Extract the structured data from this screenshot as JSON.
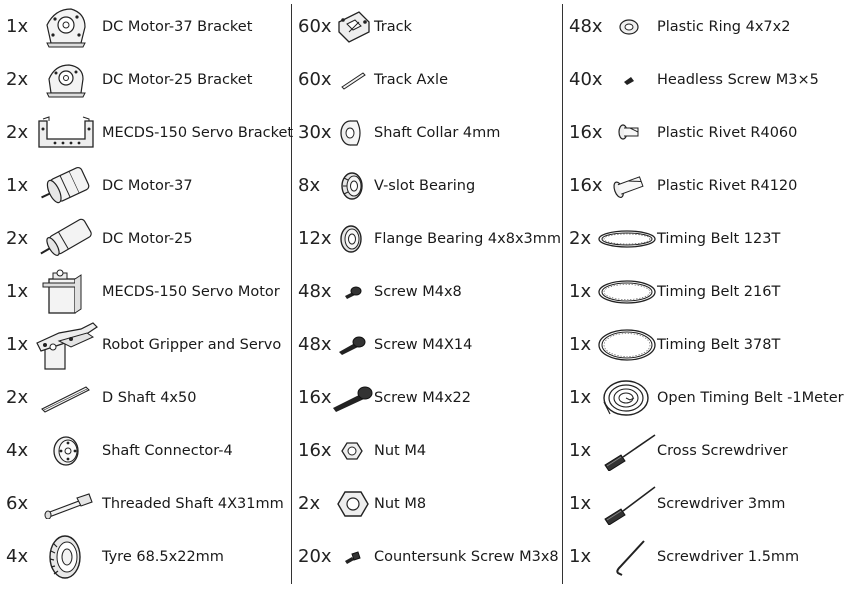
{
  "columns": [
    {
      "items": [
        {
          "qty": "1x",
          "label": "DC Motor-37 Bracket",
          "icon": "motor-bracket-icon"
        },
        {
          "qty": "2x",
          "label": "DC Motor-25 Bracket",
          "icon": "motor-bracket-icon"
        },
        {
          "qty": "2x",
          "label": "MECDS-150 Servo Bracket",
          "icon": "servo-bracket-icon"
        },
        {
          "qty": "1x",
          "label": "DC Motor-37",
          "icon": "dc-motor-icon"
        },
        {
          "qty": "2x",
          "label": "DC Motor-25",
          "icon": "dc-motor-icon"
        },
        {
          "qty": "1x",
          "label": "MECDS-150 Servo Motor",
          "icon": "servo-motor-icon"
        },
        {
          "qty": "1x",
          "label": "Robot Gripper and Servo",
          "icon": "gripper-icon"
        },
        {
          "qty": "2x",
          "label": "D Shaft 4x50",
          "icon": "shaft-icon"
        },
        {
          "qty": "4x",
          "label": "Shaft Connector-4",
          "icon": "shaft-connector-icon"
        },
        {
          "qty": "6x",
          "label": "Threaded Shaft 4X31mm",
          "icon": "threaded-shaft-icon"
        },
        {
          "qty": "4x",
          "label": "Tyre 68.5x22mm",
          "icon": "tyre-icon"
        }
      ]
    },
    {
      "items": [
        {
          "qty": "60x",
          "label": "Track",
          "icon": "track-icon"
        },
        {
          "qty": "60x",
          "label": "Track Axle",
          "icon": "track-axle-icon"
        },
        {
          "qty": "30x",
          "label": "Shaft Collar 4mm",
          "icon": "shaft-collar-icon"
        },
        {
          "qty": "8x",
          "label": "V-slot Bearing",
          "icon": "v-slot-bearing-icon"
        },
        {
          "qty": "12x",
          "label": "Flange Bearing 4x8x3mm",
          "icon": "flange-bearing-icon"
        },
        {
          "qty": "48x",
          "label": "Screw M4x8",
          "icon": "screw-short-icon"
        },
        {
          "qty": "48x",
          "label": "Screw M4X14",
          "icon": "screw-medium-icon"
        },
        {
          "qty": "16x",
          "label": "Screw M4x22",
          "icon": "screw-long-icon"
        },
        {
          "qty": "16x",
          "label": "Nut M4",
          "icon": "nut-small-icon"
        },
        {
          "qty": "2x",
          "label": "Nut M8",
          "icon": "nut-large-icon"
        },
        {
          "qty": "20x",
          "label": "Countersunk Screw M3x8",
          "icon": "countersunk-screw-icon"
        }
      ]
    },
    {
      "items": [
        {
          "qty": "48x",
          "label": "Plastic Ring 4x7x2",
          "icon": "plastic-ring-icon"
        },
        {
          "qty": "40x",
          "label": "Headless Screw  M3×5",
          "icon": "headless-screw-icon"
        },
        {
          "qty": "16x",
          "label": "Plastic Rivet R4060",
          "icon": "plastic-rivet-icon"
        },
        {
          "qty": "16x",
          "label": "Plastic Rivet R4120",
          "icon": "plastic-rivet-long-icon"
        },
        {
          "qty": "2x",
          "label": "Timing Belt 123T",
          "icon": "timing-belt-icon"
        },
        {
          "qty": "1x",
          "label": "Timing Belt 216T",
          "icon": "timing-belt-icon"
        },
        {
          "qty": "1x",
          "label": "Timing Belt 378T",
          "icon": "timing-belt-icon"
        },
        {
          "qty": "1x",
          "label": "Open Timing Belt -1Meter",
          "icon": "belt-coil-icon"
        },
        {
          "qty": "1x",
          "label": "Cross Screwdriver",
          "icon": "screwdriver-icon"
        },
        {
          "qty": "1x",
          "label": "Screwdriver 3mm",
          "icon": "screwdriver-icon"
        },
        {
          "qty": "1x",
          "label": "Screwdriver 1.5mm",
          "icon": "hex-key-icon"
        }
      ]
    }
  ]
}
